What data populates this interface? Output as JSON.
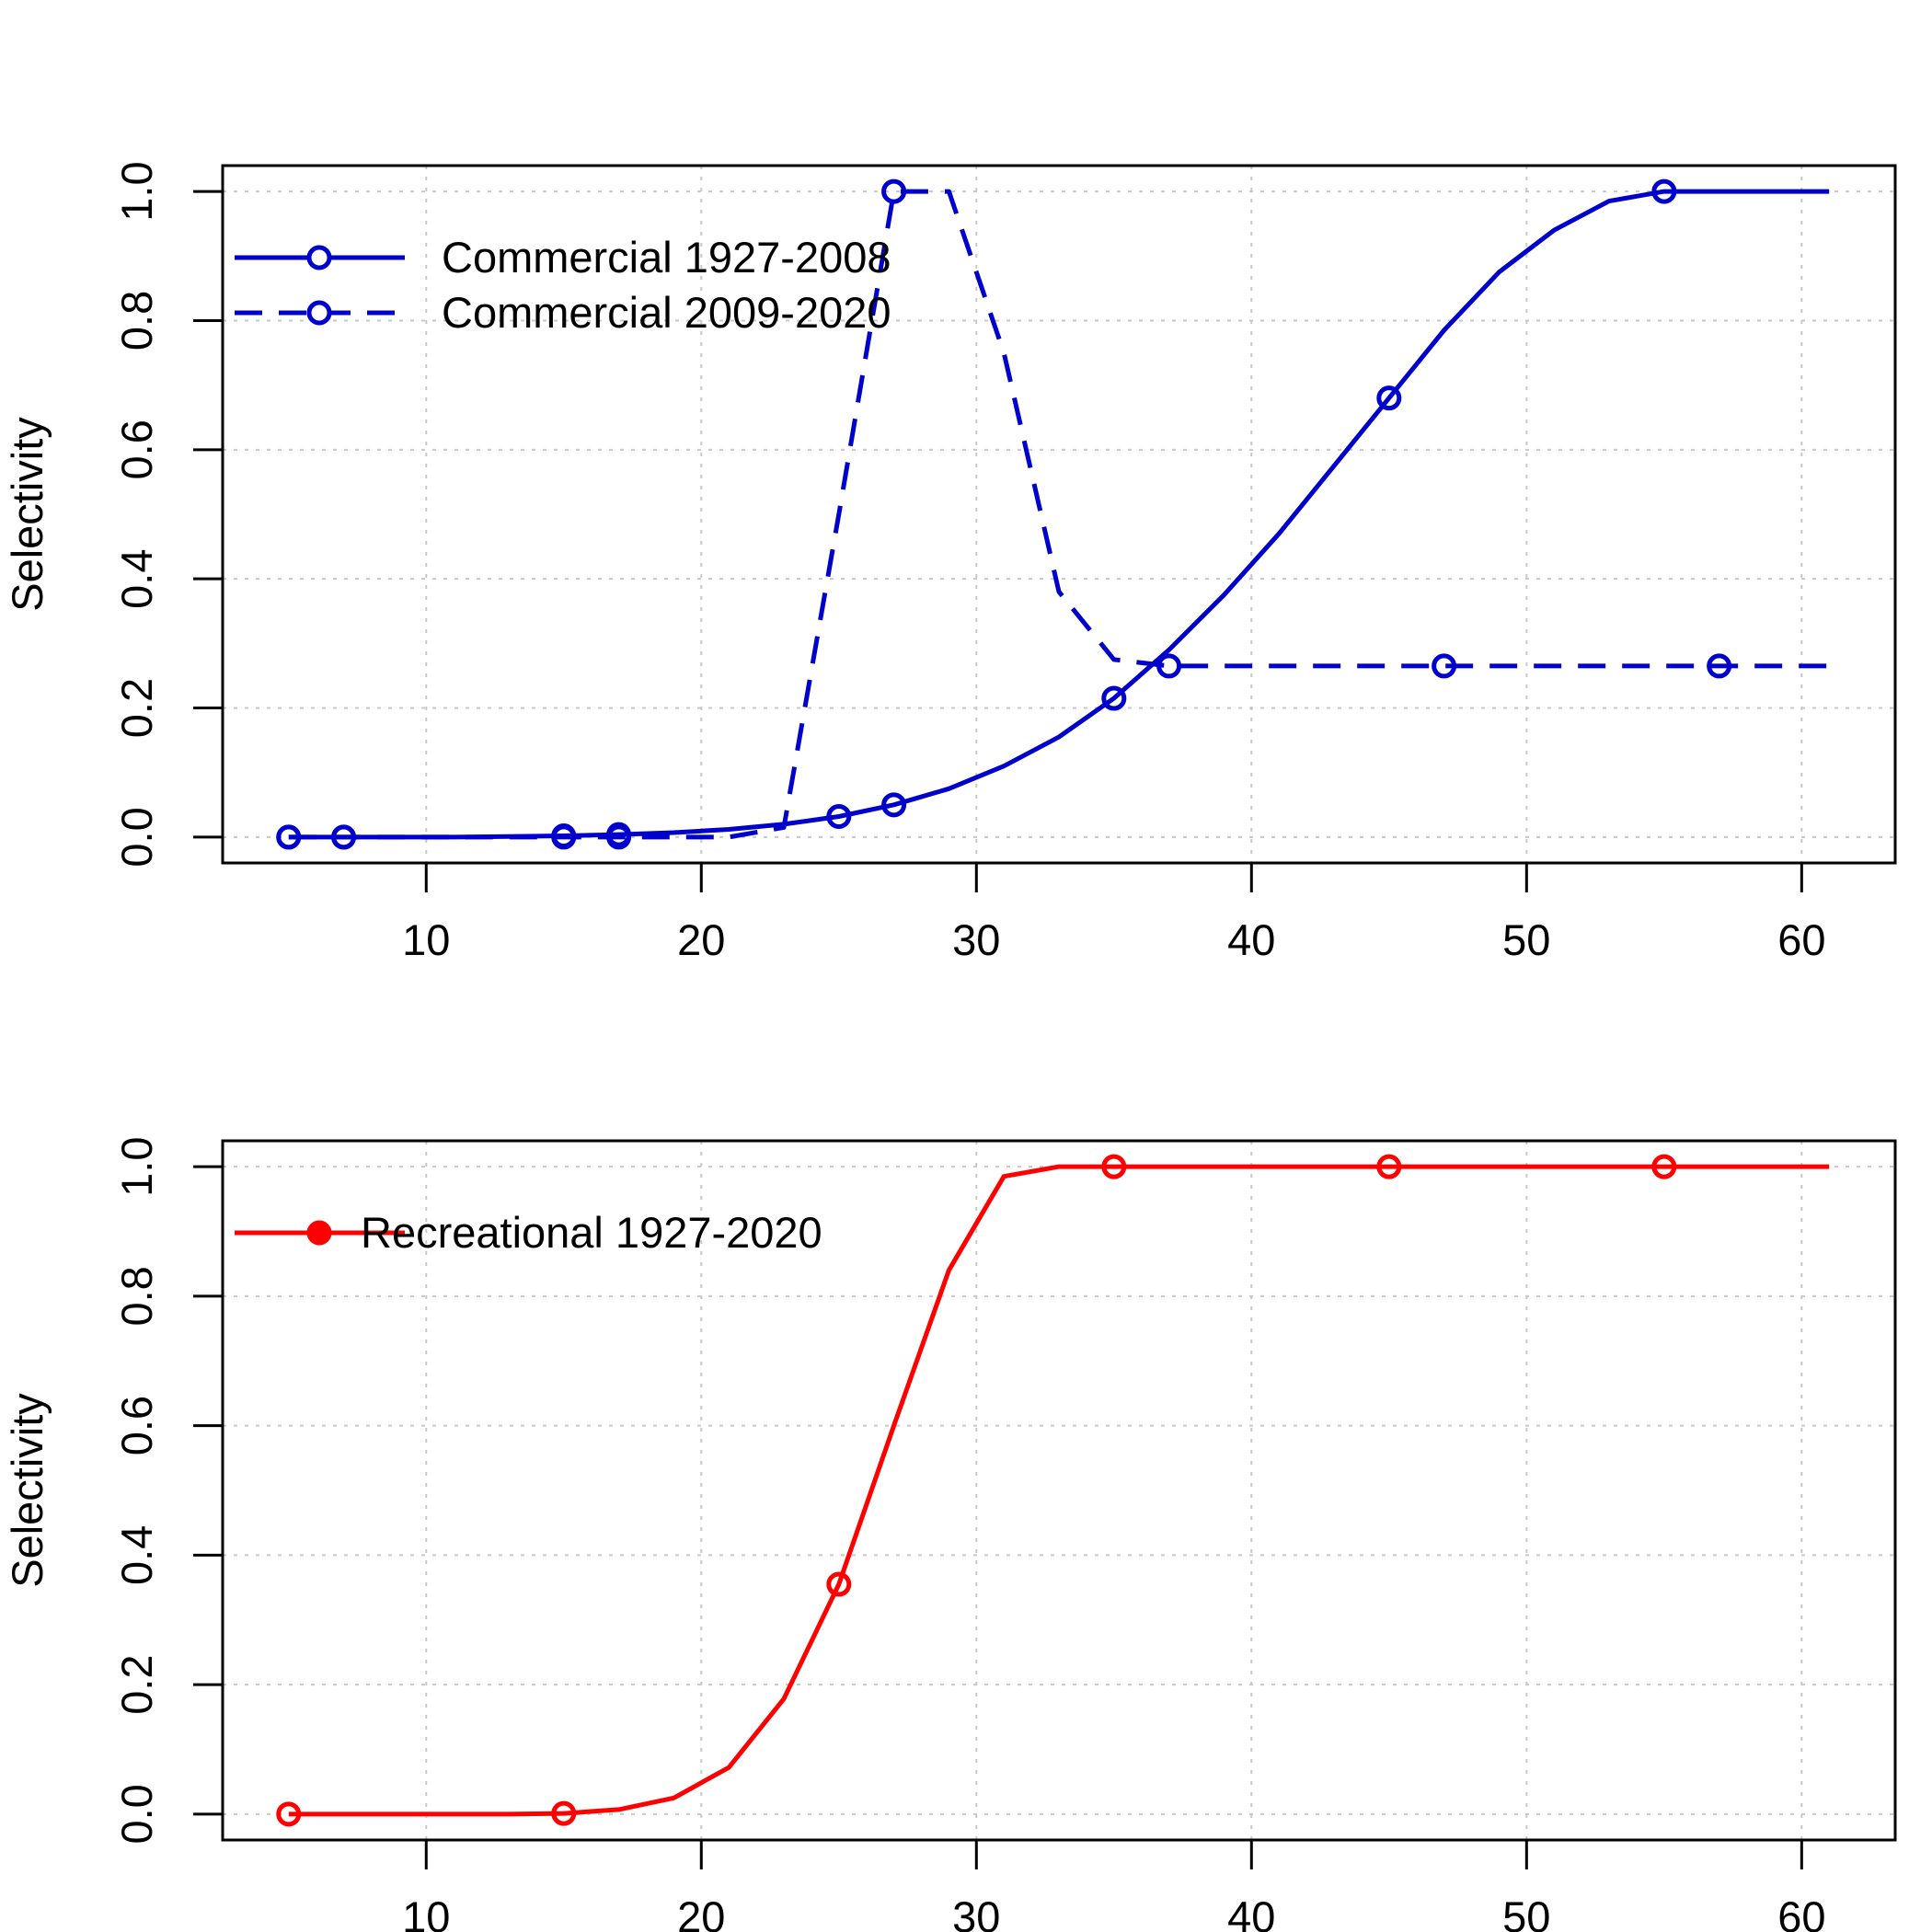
{
  "chart_data": [
    {
      "type": "line",
      "title": "",
      "xlabel": "",
      "ylabel": "Selectivity",
      "xlim": [
        2.6,
        63.4
      ],
      "ylim": [
        -0.04,
        1.04
      ],
      "xticks": [
        10,
        20,
        30,
        40,
        50,
        60
      ],
      "yticks": [
        0.0,
        0.2,
        0.4,
        0.6,
        0.8,
        1.0
      ],
      "xtick_labels": [
        "10",
        "20",
        "30",
        "40",
        "50",
        "60"
      ],
      "ytick_labels": [
        "0.0",
        "0.2",
        "0.4",
        "0.6",
        "0.8",
        "1.0"
      ],
      "grid": true,
      "legend_position": "top-left",
      "series": [
        {
          "name": "Commercial 1927-2008",
          "color": "#0000cc",
          "line_style": "solid",
          "marker": "open-circle",
          "x": [
            5,
            7,
            9,
            11,
            13,
            15,
            17,
            19,
            21,
            23,
            25,
            27,
            29,
            31,
            33,
            35,
            37,
            39,
            41,
            43,
            45,
            47,
            49,
            51,
            53,
            55,
            57,
            59,
            61
          ],
          "y": [
            0.0,
            0.0,
            0.0,
            0.0,
            0.001,
            0.002,
            0.004,
            0.007,
            0.012,
            0.02,
            0.032,
            0.05,
            0.075,
            0.11,
            0.155,
            0.215,
            0.29,
            0.375,
            0.47,
            0.575,
            0.68,
            0.785,
            0.875,
            0.94,
            0.985,
            1.0,
            1.0,
            1.0,
            1.0
          ],
          "marker_x": [
            5,
            7,
            15,
            17,
            25,
            27,
            35,
            45,
            55
          ]
        },
        {
          "name": "Commercial 2009-2020",
          "color": "#0000cc",
          "line_style": "dashed",
          "marker": "open-circle",
          "x": [
            5,
            7,
            9,
            11,
            13,
            15,
            17,
            19,
            21,
            23,
            25,
            27,
            29,
            31,
            33,
            35,
            37,
            39,
            41,
            43,
            45,
            47,
            49,
            51,
            53,
            55,
            57,
            59,
            61
          ],
          "y": [
            0.0,
            0.0,
            0.0,
            0.0,
            0.0,
            0.0,
            0.0,
            0.0,
            0.0,
            0.015,
            0.5,
            1.0,
            1.0,
            0.75,
            0.38,
            0.275,
            0.265,
            0.265,
            0.265,
            0.265,
            0.265,
            0.265,
            0.265,
            0.265,
            0.265,
            0.265,
            0.265,
            0.265,
            0.265
          ],
          "marker_x": [
            5,
            7,
            15,
            17,
            27,
            37,
            47,
            57
          ]
        }
      ]
    },
    {
      "type": "line",
      "title": "",
      "xlabel": "",
      "ylabel": "Selectivity",
      "xlim": [
        2.6,
        63.4
      ],
      "ylim": [
        -0.04,
        1.04
      ],
      "xticks": [
        10,
        20,
        30,
        40,
        50,
        60
      ],
      "yticks": [
        0.0,
        0.2,
        0.4,
        0.6,
        0.8,
        1.0
      ],
      "xtick_labels": [
        "10",
        "20",
        "30",
        "40",
        "50",
        "60"
      ],
      "ytick_labels": [
        "0.0",
        "0.2",
        "0.4",
        "0.6",
        "0.8",
        "1.0"
      ],
      "grid": true,
      "legend_position": "top-left",
      "series": [
        {
          "name": "Recreational 1927-2020",
          "color": "#ff0000",
          "line_style": "solid",
          "marker": "open-circle",
          "legend_marker": "filled-circle",
          "x": [
            5,
            7,
            9,
            11,
            13,
            15,
            17,
            19,
            21,
            23,
            25,
            27,
            29,
            31,
            33,
            35,
            37,
            39,
            41,
            43,
            45,
            47,
            49,
            51,
            53,
            55,
            57,
            59,
            61
          ],
          "y": [
            0.0,
            0.0,
            0.0,
            0.0,
            0.0,
            0.001,
            0.007,
            0.025,
            0.072,
            0.178,
            0.355,
            0.6,
            0.84,
            0.985,
            1.0,
            1.0,
            1.0,
            1.0,
            1.0,
            1.0,
            1.0,
            1.0,
            1.0,
            1.0,
            1.0,
            1.0,
            1.0,
            1.0,
            1.0
          ],
          "marker_x": [
            5,
            15,
            25,
            35,
            45,
            55
          ]
        }
      ]
    }
  ]
}
